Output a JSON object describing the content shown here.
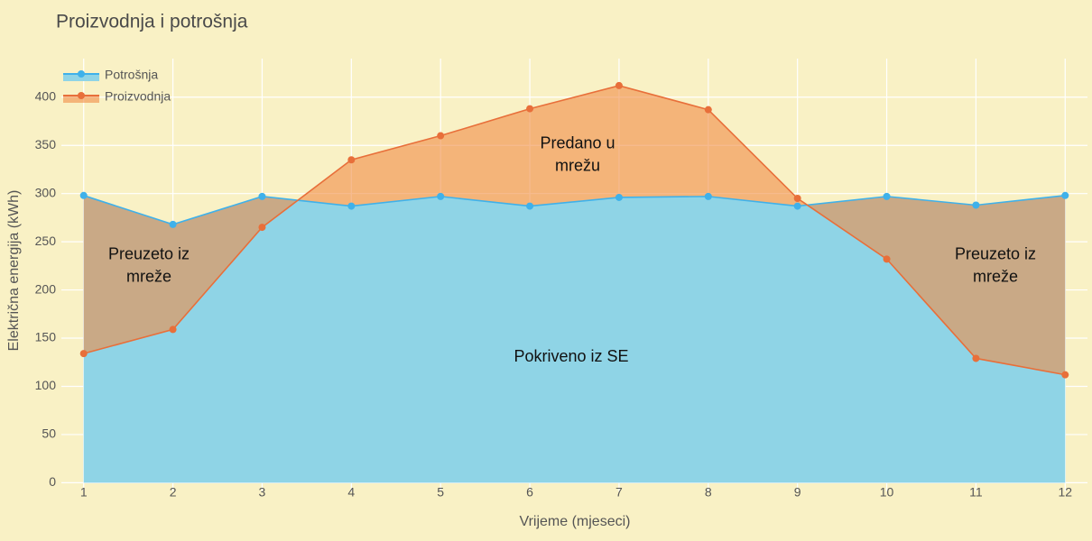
{
  "chart_data": {
    "type": "area",
    "title": "Proizvodnja i potrošnja",
    "x_label": "Vrijeme (mjeseci)",
    "y_label": "Električna energija (kWh)",
    "x": [
      1,
      2,
      3,
      4,
      5,
      6,
      7,
      8,
      9,
      10,
      11,
      12
    ],
    "series": [
      {
        "name": "Potrošnja",
        "color": "#3fb1ea",
        "fill": "#8fd4e6",
        "values": [
          298,
          268,
          297,
          287,
          297,
          287,
          296,
          297,
          287,
          297,
          288,
          298
        ]
      },
      {
        "name": "Proizvodnja",
        "color": "#e86f3a",
        "fill": "rgba(240,140,70,0.6)",
        "values": [
          134,
          159,
          265,
          335,
          360,
          388,
          412,
          387,
          295,
          232,
          129,
          112
        ]
      }
    ],
    "xlim": [
      0.75,
      12.25
    ],
    "ylim": [
      -9,
      440
    ],
    "xticks": [
      1,
      2,
      3,
      4,
      5,
      6,
      7,
      8,
      9,
      10,
      11,
      12
    ],
    "yticks": [
      0,
      50,
      100,
      150,
      200,
      250,
      300,
      350,
      400
    ],
    "grid": true,
    "legend": "top-left",
    "annotations": [
      {
        "lines": [
          "Predano u",
          "mrežu"
        ]
      },
      {
        "lines": [
          "Preuzeto iz",
          "mreže"
        ]
      },
      {
        "lines": [
          "Preuzeto iz",
          "mreže"
        ]
      },
      {
        "lines": [
          "Pokriveno iz SE"
        ]
      }
    ]
  }
}
